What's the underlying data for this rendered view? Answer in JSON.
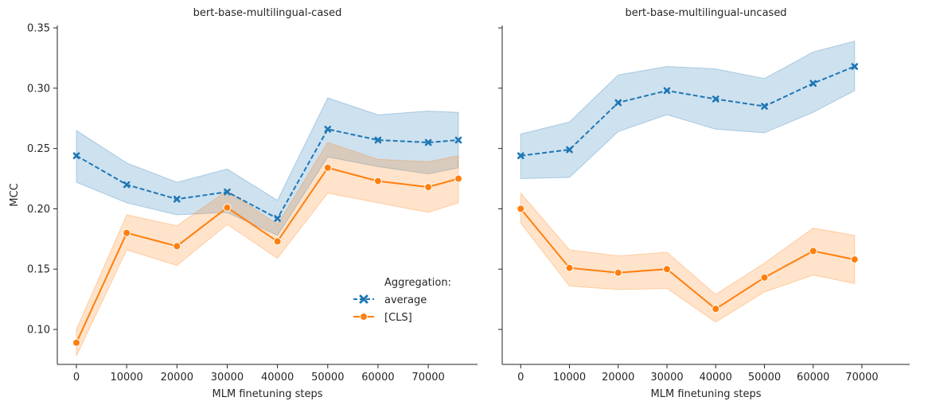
{
  "chart_data": [
    {
      "type": "line",
      "title": "bert-base-multilingual-cased",
      "xlabel": "MLM finetuning steps",
      "ylabel": "MCC",
      "xlim": [
        -3800,
        79800
      ],
      "ylim": [
        0.071,
        0.352
      ],
      "xticks": [
        "0",
        "10000",
        "20000",
        "30000",
        "40000",
        "50000",
        "60000",
        "70000"
      ],
      "xtick_values": [
        0,
        10000,
        20000,
        30000,
        40000,
        50000,
        60000,
        70000
      ],
      "yticks": [
        "0.10",
        "0.15",
        "0.20",
        "0.25",
        "0.30",
        "0.35"
      ],
      "ytick_values": [
        0.1,
        0.15,
        0.2,
        0.25,
        0.3,
        0.35
      ],
      "grid": false,
      "legend": {
        "title": "Aggregation:",
        "placement": "lower-right",
        "entries": [
          "average",
          "[CLS]"
        ]
      },
      "x": [
        0,
        10000,
        20000,
        30000,
        40000,
        50000,
        60000,
        70000,
        76000
      ],
      "series": [
        {
          "name": "average",
          "color": "#1f77b4",
          "marker": "x",
          "linestyle": "dashed",
          "values": [
            0.244,
            0.22,
            0.208,
            0.214,
            0.192,
            0.266,
            0.257,
            0.255,
            0.257
          ],
          "ci_low": [
            0.222,
            0.205,
            0.195,
            0.197,
            0.178,
            0.243,
            0.235,
            0.229,
            0.234
          ],
          "ci_high": [
            0.265,
            0.238,
            0.222,
            0.233,
            0.207,
            0.292,
            0.278,
            0.281,
            0.28
          ]
        },
        {
          "name": "[CLS]",
          "color": "#ff7f0e",
          "marker": "o",
          "linestyle": "solid",
          "values": [
            0.089,
            0.18,
            0.169,
            0.201,
            0.173,
            0.234,
            0.223,
            0.218,
            0.225
          ],
          "ci_low": [
            0.078,
            0.166,
            0.153,
            0.187,
            0.159,
            0.213,
            0.205,
            0.197,
            0.205
          ],
          "ci_high": [
            0.1,
            0.195,
            0.186,
            0.215,
            0.187,
            0.255,
            0.241,
            0.239,
            0.244
          ]
        }
      ]
    },
    {
      "type": "line",
      "title": "bert-base-multilingual-uncased",
      "xlabel": "MLM finetuning steps",
      "ylabel": "",
      "xlim": [
        -3800,
        79800
      ],
      "ylim": [
        0.071,
        0.352
      ],
      "xticks": [
        "0",
        "10000",
        "20000",
        "30000",
        "40000",
        "50000",
        "60000",
        "70000"
      ],
      "xtick_values": [
        0,
        10000,
        20000,
        30000,
        40000,
        50000,
        60000,
        70000
      ],
      "yticks": [],
      "ytick_values": [
        0.1,
        0.15,
        0.2,
        0.25,
        0.3,
        0.35
      ],
      "grid": false,
      "x": [
        0,
        10000,
        20000,
        30000,
        40000,
        50000,
        60000,
        68500
      ],
      "series": [
        {
          "name": "average",
          "color": "#1f77b4",
          "marker": "x",
          "linestyle": "dashed",
          "values": [
            0.244,
            0.249,
            0.288,
            0.298,
            0.291,
            0.285,
            0.304,
            0.318
          ],
          "ci_low": [
            0.225,
            0.226,
            0.264,
            0.278,
            0.266,
            0.263,
            0.28,
            0.298
          ],
          "ci_high": [
            0.262,
            0.272,
            0.311,
            0.318,
            0.316,
            0.308,
            0.33,
            0.339
          ]
        },
        {
          "name": "[CLS]",
          "color": "#ff7f0e",
          "marker": "o",
          "linestyle": "solid",
          "values": [
            0.2,
            0.151,
            0.147,
            0.15,
            0.117,
            0.143,
            0.165,
            0.158
          ],
          "ci_low": [
            0.188,
            0.136,
            0.133,
            0.134,
            0.106,
            0.131,
            0.145,
            0.138
          ],
          "ci_high": [
            0.213,
            0.166,
            0.161,
            0.164,
            0.129,
            0.155,
            0.184,
            0.178
          ]
        }
      ]
    }
  ]
}
